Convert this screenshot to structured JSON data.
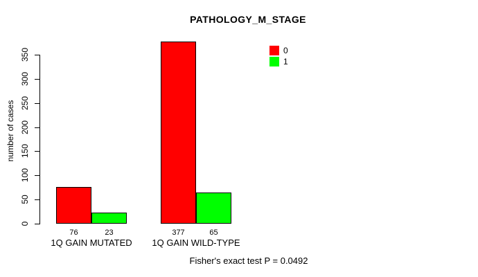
{
  "chart_data": {
    "type": "bar",
    "title": "PATHOLOGY_M_STAGE",
    "ylabel": "number of cases",
    "xlabel": "",
    "categories": [
      "1Q GAIN MUTATED",
      "1Q GAIN WILD-TYPE"
    ],
    "series": [
      {
        "name": "0",
        "color": "#FF0000",
        "values": [
          76,
          377
        ]
      },
      {
        "name": "1",
        "color": "#00FF00",
        "values": [
          23,
          65
        ]
      }
    ],
    "yticks": [
      0,
      50,
      100,
      150,
      200,
      250,
      300,
      350
    ],
    "ylim": [
      0,
      350
    ],
    "grid": false,
    "legend_position": "top-right",
    "bar_border_color": "#000000",
    "axis_color": "#000000",
    "annotation": "Fisher's exact test P = 0.0492"
  }
}
